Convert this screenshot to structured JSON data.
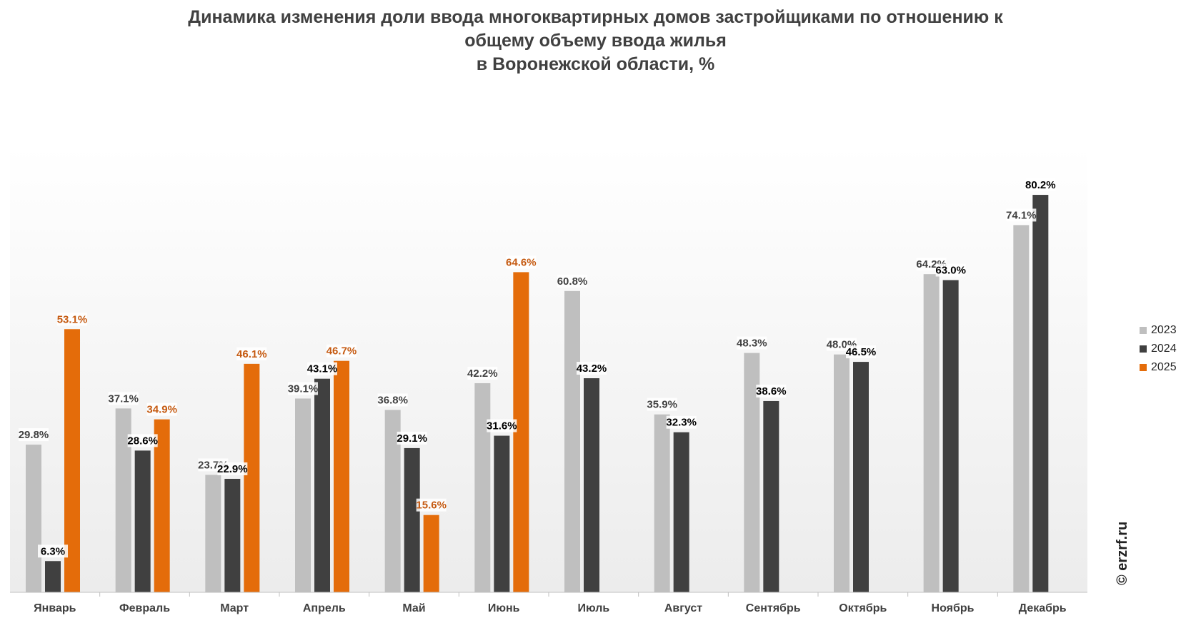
{
  "title_lines": [
    "Динамика изменения доли ввода многоквартирных домов застройщиками по отношению к",
    "общему объему ввода жилья",
    "в Воронежской области, %"
  ],
  "watermark": "© erzrf.ru",
  "chart_data": {
    "type": "bar",
    "categories": [
      "Январь",
      "Февраль",
      "Март",
      "Апрель",
      "Май",
      "Июнь",
      "Июль",
      "Август",
      "Сентябрь",
      "Октябрь",
      "Ноябрь",
      "Декабрь"
    ],
    "series": [
      {
        "name": "2023",
        "color": "#bfbfbf",
        "label_color": "#404040",
        "values": [
          29.8,
          37.1,
          23.7,
          39.1,
          36.8,
          42.2,
          60.8,
          35.9,
          48.3,
          48.0,
          64.2,
          74.1
        ],
        "labels": [
          "29.8%",
          "37.1%",
          "23.7%",
          "39.1%",
          "36.8%",
          "42.2%",
          "60.8%",
          "35.9%",
          "48.3%",
          "48.0%",
          "64.2%",
          "74.1%"
        ]
      },
      {
        "name": "2024",
        "color": "#404040",
        "label_color": "#000000",
        "values": [
          6.3,
          28.6,
          22.9,
          43.1,
          29.1,
          31.6,
          43.2,
          32.3,
          38.6,
          46.5,
          63.0,
          80.2
        ],
        "labels": [
          "6.3%",
          "28.6%",
          "22.9%",
          "43.1%",
          "29.1%",
          "31.6%",
          "43.2%",
          "32.3%",
          "38.6%",
          "46.5%",
          "63.0%",
          "80.2%"
        ]
      },
      {
        "name": "2025",
        "color": "#e46c0a",
        "label_color": "#c55a11",
        "values": [
          53.1,
          34.9,
          46.1,
          46.7,
          15.6,
          64.6,
          null,
          null,
          null,
          null,
          null,
          null
        ],
        "labels": [
          "53.1%",
          "34.9%",
          "46.1%",
          "46.7%",
          "15.6%",
          "64.6%",
          "",
          "",
          "",
          "",
          "",
          ""
        ]
      }
    ],
    "ylim": [
      0,
      90
    ],
    "grid": false,
    "legend_position": "right"
  }
}
